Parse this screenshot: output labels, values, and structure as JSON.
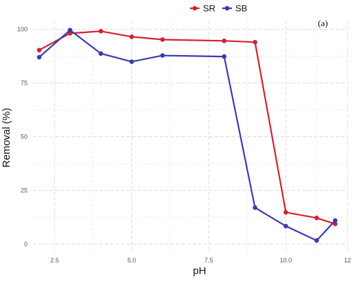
{
  "chart_data": {
    "type": "line",
    "panel_label": "(a)",
    "xlabel": "pH",
    "ylabel": "Removal (%)",
    "xlim": [
      1.8,
      12.0
    ],
    "ylim": [
      -4,
      104
    ],
    "xticks": [
      2.5,
      5.0,
      7.5,
      10.0,
      12
    ],
    "xtick_labels": [
      "2.5",
      "5.0",
      "7.5",
      "10.0",
      "12"
    ],
    "yticks": [
      0,
      25,
      50,
      75,
      100
    ],
    "ytick_labels": [
      "0",
      "25",
      "50",
      "75",
      "100"
    ],
    "grid": true,
    "legend_position": "top-center",
    "series": [
      {
        "name": "SR",
        "color": "#d32030",
        "x": [
          2,
          3,
          4,
          5,
          6,
          8,
          9,
          10,
          11,
          11.6
        ],
        "y": [
          90.3,
          98.1,
          99.1,
          96.5,
          95.2,
          94.6,
          94.0,
          14.8,
          12.2,
          9.4
        ]
      },
      {
        "name": "SB",
        "color": "#3a3ab0",
        "x": [
          2,
          3,
          4,
          5,
          6,
          8,
          9,
          10,
          11,
          11.6
        ],
        "y": [
          87.0,
          99.6,
          88.7,
          84.9,
          87.8,
          87.3,
          17.0,
          8.4,
          1.7,
          11.0
        ]
      }
    ]
  }
}
